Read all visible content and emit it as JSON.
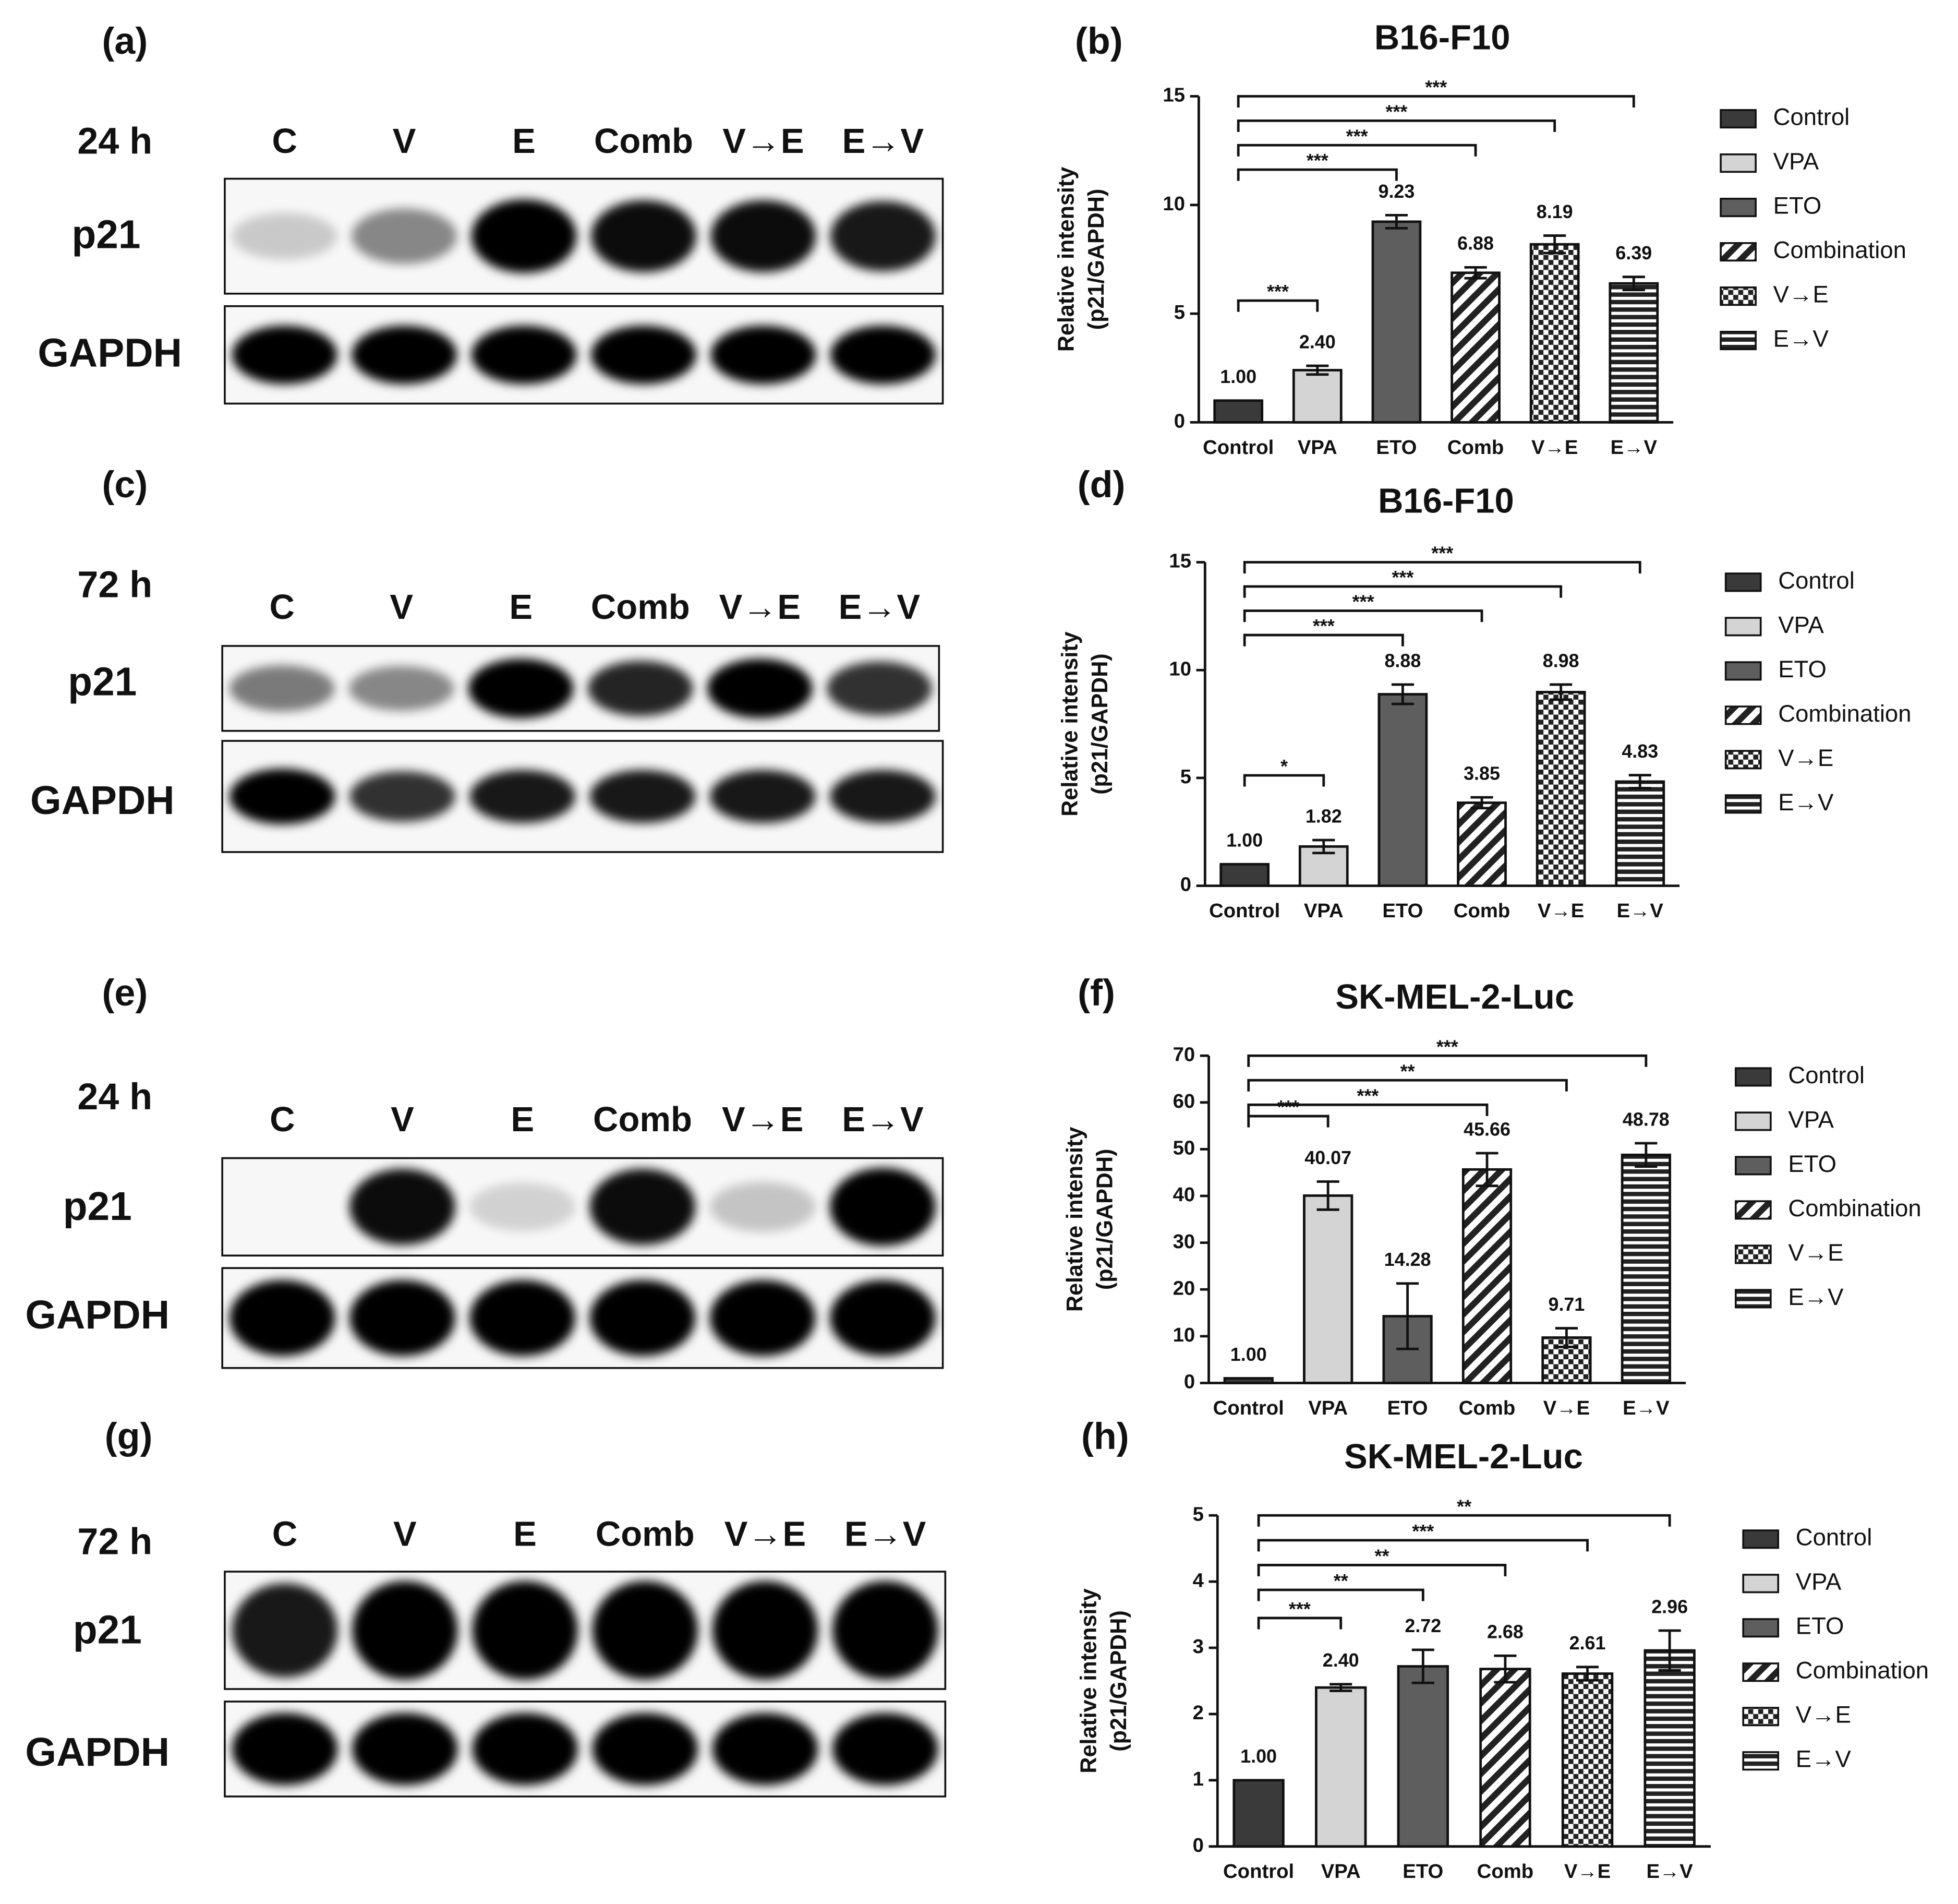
{
  "blots": [
    {
      "panel": "(a)",
      "time": "24 h",
      "lanes": [
        "C",
        "V",
        "E",
        "Comb",
        "V→E",
        "E→V"
      ],
      "targets": [
        "p21",
        "GAPDH"
      ]
    },
    {
      "panel": "(c)",
      "time": "72 h",
      "lanes": [
        "C",
        "V",
        "E",
        "Comb",
        "V→E",
        "E→V"
      ],
      "targets": [
        "p21",
        "GAPDH"
      ]
    },
    {
      "panel": "(e)",
      "time": "24 h",
      "lanes": [
        "C",
        "V",
        "E",
        "Comb",
        "V→E",
        "E→V"
      ],
      "targets": [
        "p21",
        "GAPDH"
      ]
    },
    {
      "panel": "(g)",
      "time": "72 h",
      "lanes": [
        "C",
        "V",
        "E",
        "Comb",
        "V→E",
        "E→V"
      ],
      "targets": [
        "p21",
        "GAPDH"
      ]
    }
  ],
  "chart_data": [
    {
      "type": "bar",
      "panel": "(b)",
      "title": "B16-F10",
      "y_label": [
        "Relative intensity",
        "(p21/GAPDH)"
      ],
      "categories": [
        "Control",
        "VPA",
        "ETO",
        "Comb",
        "V→E",
        "E→V"
      ],
      "values": [
        1.0,
        2.4,
        9.23,
        6.88,
        8.19,
        6.39
      ],
      "value_labels": [
        "1.00",
        "2.40",
        "9.23",
        "6.88",
        "8.19",
        "6.39"
      ],
      "errors": [
        0,
        0.2,
        0.3,
        0.25,
        0.4,
        0.3
      ],
      "significance": [
        null,
        "***",
        "***",
        "***",
        "***",
        "***"
      ],
      "legend": [
        "Control",
        "VPA",
        "ETO",
        "Combination",
        "V→E",
        "E→V"
      ],
      "colors": [
        "#3a3a3a",
        "#d4d4d4",
        "#5e5e5e",
        "#222222",
        "#222222",
        "#222222"
      ],
      "patterns": [
        "solid",
        "solid",
        "solid",
        "diagonal",
        "checker",
        "horizontal"
      ],
      "ylim": [
        0,
        15
      ],
      "yticks": [
        0,
        5,
        10,
        15
      ]
    },
    {
      "type": "bar",
      "panel": "(d)",
      "title": "B16-F10",
      "y_label": [
        "Relative intensity",
        "(p21/GAPDH)"
      ],
      "categories": [
        "Control",
        "VPA",
        "ETO",
        "Comb",
        "V→E",
        "E→V"
      ],
      "values": [
        1.0,
        1.82,
        8.88,
        3.85,
        8.98,
        4.83
      ],
      "value_labels": [
        "1.00",
        "1.82",
        "8.88",
        "3.85",
        "8.98",
        "4.83"
      ],
      "errors": [
        0,
        0.3,
        0.45,
        0.25,
        0.35,
        0.3
      ],
      "significance": [
        null,
        "*",
        "***",
        "***",
        "***",
        "***"
      ],
      "legend": [
        "Control",
        "VPA",
        "ETO",
        "Combination",
        "V→E",
        "E→V"
      ],
      "colors": [
        "#3a3a3a",
        "#d4d4d4",
        "#5e5e5e",
        "#222222",
        "#222222",
        "#222222"
      ],
      "patterns": [
        "solid",
        "solid",
        "solid",
        "diagonal",
        "checker",
        "horizontal"
      ],
      "ylim": [
        0,
        15
      ],
      "yticks": [
        0,
        5,
        10,
        15
      ]
    },
    {
      "type": "bar",
      "panel": "(f)",
      "title": "SK-MEL-2-Luc",
      "y_label": [
        "Relative intensity",
        "(p21/GAPDH)"
      ],
      "categories": [
        "Control",
        "VPA",
        "ETO",
        "Comb",
        "V→E",
        "E→V"
      ],
      "values": [
        1.0,
        40.07,
        14.28,
        45.66,
        9.71,
        48.78
      ],
      "value_labels": [
        "1.00",
        "40.07",
        "14.28",
        "45.66",
        "9.71",
        "48.78"
      ],
      "errors": [
        0,
        3,
        7,
        3.5,
        2,
        2.5
      ],
      "significance": [
        null,
        "***",
        null,
        "***",
        "**",
        "***"
      ],
      "legend": [
        "Control",
        "VPA",
        "ETO",
        "Combination",
        "V→E",
        "E→V"
      ],
      "colors": [
        "#3a3a3a",
        "#d4d4d4",
        "#5e5e5e",
        "#222222",
        "#222222",
        "#222222"
      ],
      "patterns": [
        "solid",
        "solid",
        "solid",
        "diagonal",
        "checker",
        "horizontal"
      ],
      "ylim": [
        0,
        70
      ],
      "yticks": [
        0,
        10,
        20,
        30,
        40,
        50,
        60,
        70
      ]
    },
    {
      "type": "bar",
      "panel": "(h)",
      "title": "SK-MEL-2-Luc",
      "y_label": [
        "Relative intensity",
        "(p21/GAPDH)"
      ],
      "categories": [
        "Control",
        "VPA",
        "ETO",
        "Comb",
        "V→E",
        "E→V"
      ],
      "values": [
        1.0,
        2.4,
        2.72,
        2.68,
        2.61,
        2.96
      ],
      "value_labels": [
        "1.00",
        "2.40",
        "2.72",
        "2.68",
        "2.61",
        "2.96"
      ],
      "errors": [
        0,
        0.05,
        0.25,
        0.2,
        0.1,
        0.3
      ],
      "significance": [
        null,
        "***",
        "**",
        "**",
        "***",
        "**"
      ],
      "legend": [
        "Control",
        "VPA",
        "ETO",
        "Combination",
        "V→E",
        "E→V"
      ],
      "colors": [
        "#3a3a3a",
        "#d4d4d4",
        "#5e5e5e",
        "#222222",
        "#222222",
        "#222222"
      ],
      "patterns": [
        "solid",
        "solid",
        "solid",
        "diagonal",
        "checker",
        "horizontal"
      ],
      "ylim": [
        0,
        5
      ],
      "yticks": [
        0,
        1,
        2,
        3,
        4,
        5
      ]
    }
  ]
}
